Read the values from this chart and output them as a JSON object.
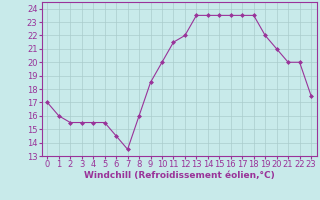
{
  "x": [
    0,
    1,
    2,
    3,
    4,
    5,
    6,
    7,
    8,
    9,
    10,
    11,
    12,
    13,
    14,
    15,
    16,
    17,
    18,
    19,
    20,
    21,
    22,
    23
  ],
  "y": [
    17,
    16,
    15.5,
    15.5,
    15.5,
    15.5,
    14.5,
    13.5,
    16,
    18.5,
    20,
    21.5,
    22,
    23.5,
    23.5,
    23.5,
    23.5,
    23.5,
    23.5,
    22,
    21,
    20,
    20,
    17.5
  ],
  "line_color": "#993399",
  "marker": "D",
  "marker_size": 2,
  "bg_color": "#c8eaea",
  "grid_color": "#aacccc",
  "xlabel": "Windchill (Refroidissement éolien,°C)",
  "xlabel_color": "#993399",
  "tick_label_color": "#993399",
  "ylim": [
    13,
    24.5
  ],
  "xlim": [
    -0.5,
    23.5
  ],
  "yticks": [
    13,
    14,
    15,
    16,
    17,
    18,
    19,
    20,
    21,
    22,
    23,
    24
  ],
  "xticks": [
    0,
    1,
    2,
    3,
    4,
    5,
    6,
    7,
    8,
    9,
    10,
    11,
    12,
    13,
    14,
    15,
    16,
    17,
    18,
    19,
    20,
    21,
    22,
    23
  ],
  "xlabel_fontsize": 6.5,
  "tick_fontsize": 6
}
